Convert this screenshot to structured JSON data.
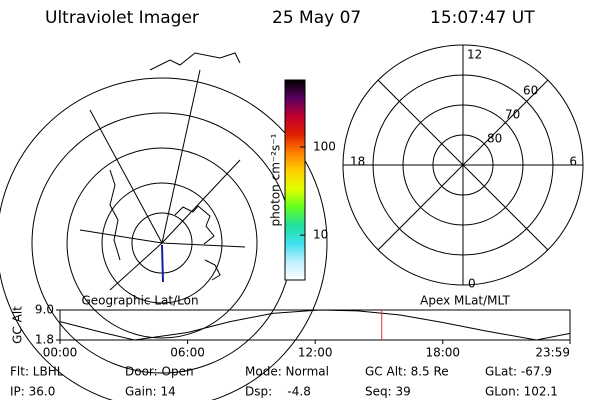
{
  "header": {
    "instrument": "Ultraviolet Imager",
    "date": "25 May 07",
    "time": "15:07:47 UT"
  },
  "colorbar": {
    "label": "photon cm⁻²s⁻¹",
    "log": true,
    "lim": [
      3.1,
      575
    ],
    "ticks": [
      100,
      10
    ],
    "colors": [
      "#000000",
      "#5a0060",
      "#c00030",
      "#e02000",
      "#ff8000",
      "#ffd000",
      "#e0ff00",
      "#60ff20",
      "#20e0a0",
      "#40e0f0",
      "#c0f0ff",
      "#ffffff"
    ]
  },
  "maps": {
    "left_label": "Geographic Lat/Lon",
    "right_label": "Apex MLat/MLT",
    "mlt_labels": [
      "12",
      "18",
      "6",
      "0"
    ],
    "mlat_ticks": [
      80,
      70,
      60
    ]
  },
  "timeline": {
    "y_label": "GC Alt",
    "x": [
      0,
      2,
      3.5,
      6,
      8,
      10,
      12.2,
      14,
      16,
      18,
      20,
      22.4,
      23.983
    ],
    "values": [
      6.2,
      3.6,
      1.8,
      3.6,
      6.2,
      8.2,
      9.0,
      8.8,
      7.8,
      6.0,
      4.0,
      1.8,
      3.4
    ],
    "xlim": [
      0,
      23.983
    ],
    "ylim": [
      1.8,
      9.0
    ],
    "yticks": [
      {
        "value": 9.0,
        "label": "9.0"
      },
      {
        "value": 1.8,
        "label": "1.8"
      }
    ],
    "xticks": [
      {
        "value": 0,
        "label": "00:00"
      },
      {
        "value": 6,
        "label": "06:00"
      },
      {
        "value": 12,
        "label": "12:00"
      },
      {
        "value": 18,
        "label": "18:00"
      },
      {
        "value": 23.983,
        "label": "23:59"
      }
    ],
    "marker_x": 15.13,
    "marker_color": "#e03030"
  },
  "footer": {
    "rows": [
      [
        "Flt: LBHL",
        "Door: Open",
        "Mode: Normal",
        "GC Alt: 8.5 Re",
        "GLat: -67.9"
      ],
      [
        "IP: 36.0",
        "Gain: 14",
        "Dsp:    -4.8",
        "Seq: 39",
        "GLon: 102.1"
      ]
    ]
  }
}
